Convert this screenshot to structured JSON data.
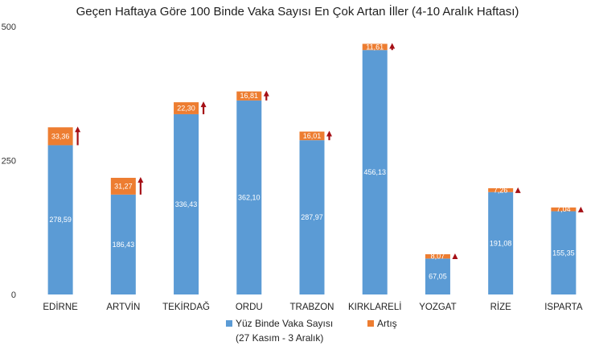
{
  "chart_data": {
    "type": "bar",
    "stacked": true,
    "title": "Geçen Haftaya Göre 100 Binde Vaka Sayısı En Çok Artan İller (4-10 Aralık Haftası)",
    "categories": [
      "EDİRNE",
      "ARTVİN",
      "TEKİRDAĞ",
      "ORDU",
      "TRABZON",
      "KIRKLARELİ",
      "YOZGAT",
      "RİZE",
      "ISPARTA"
    ],
    "series": [
      {
        "name": "Yüz Binde Vaka Sayısı",
        "name_line2": "(27 Kasım - 3 Aralık)",
        "values": [
          278.59,
          186.43,
          336.43,
          362.1,
          287.97,
          456.13,
          67.05,
          191.08,
          155.35
        ],
        "labels": [
          "278,59",
          "186,43",
          "336,43",
          "362,10",
          "287,97",
          "456,13",
          "67,05",
          "191,08",
          "155,35"
        ],
        "color": "#5b9bd5"
      },
      {
        "name": "Artış",
        "values": [
          33.36,
          31.27,
          22.3,
          16.81,
          16.01,
          11.61,
          8.07,
          7.26,
          7.04
        ],
        "labels": [
          "33,36",
          "31,27",
          "22,30",
          "16,81",
          "16,01",
          "11,61",
          "8,07",
          "7,26",
          "7,04"
        ],
        "color": "#ed7d31"
      }
    ],
    "arrow_color": "#a50f15",
    "yticks": [
      "0",
      "250",
      "500"
    ],
    "ylim": [
      0,
      500
    ],
    "grid": false,
    "legend_position": "bottom"
  }
}
